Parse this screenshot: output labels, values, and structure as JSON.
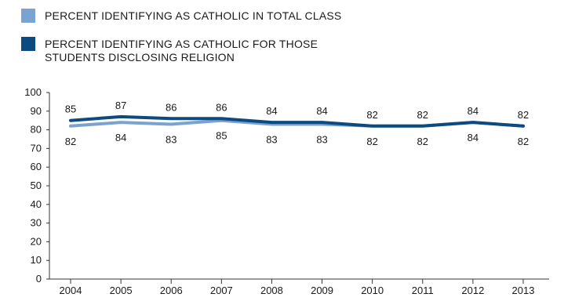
{
  "chart_data": {
    "type": "line",
    "x": [
      "2004",
      "2005",
      "2006",
      "2007",
      "2008",
      "2009",
      "2010",
      "2011",
      "2012",
      "2013"
    ],
    "ylim": [
      0,
      100
    ],
    "yticks": [
      0,
      10,
      20,
      30,
      40,
      50,
      60,
      70,
      80,
      90,
      100
    ],
    "grid": false,
    "legend_position": "top-left",
    "legend": [
      {
        "lines": [
          "PERCENT IDENTIFYING AS CATHOLIC IN TOTAL CLASS"
        ],
        "color": "#7aa3d2"
      },
      {
        "lines": [
          "PERCENT IDENTIFYING AS CATHOLIC FOR THOSE",
          "STUDENTS DISCLOSING RELIGION"
        ],
        "color": "#0d4a80"
      }
    ],
    "series": [
      {
        "values": [
          82,
          84,
          83,
          85,
          83,
          83,
          82,
          82,
          84,
          82
        ],
        "color": "#7aa3d2",
        "label_position": "below"
      },
      {
        "values": [
          85,
          87,
          86,
          86,
          84,
          84,
          82,
          82,
          84,
          82
        ],
        "color": "#0d4a80",
        "label_position": "above"
      }
    ]
  }
}
